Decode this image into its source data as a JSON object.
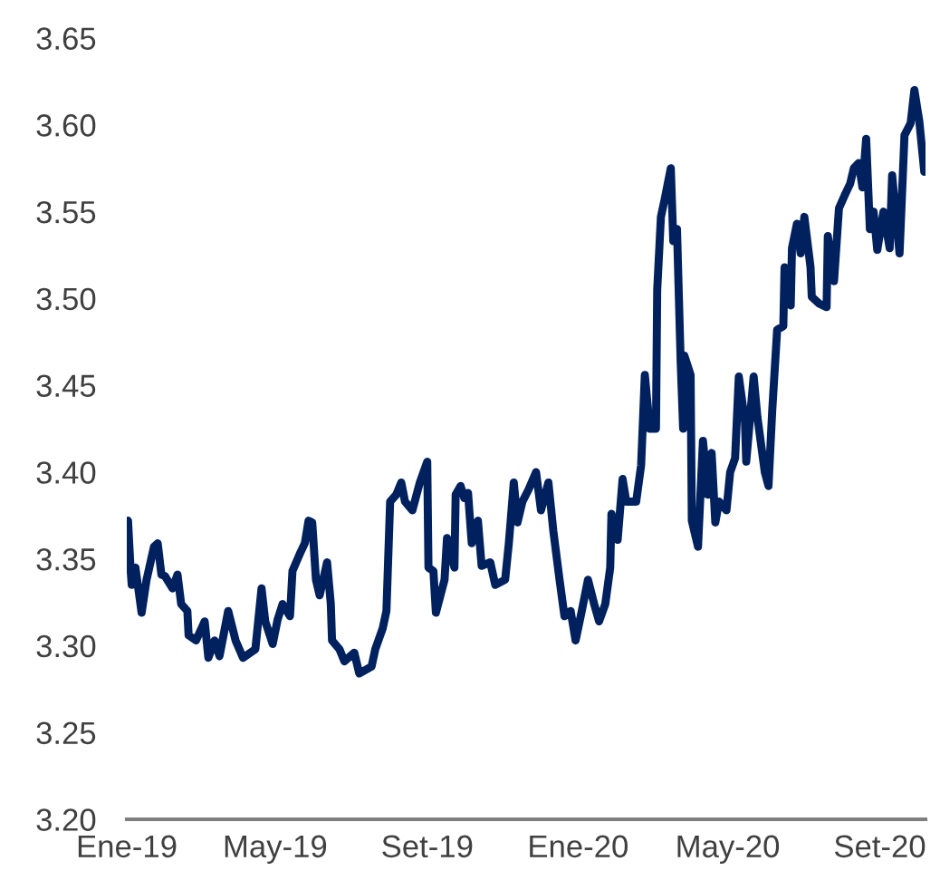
{
  "chart_data": {
    "type": "line",
    "x": [
      "2019-01-02",
      "2019-01-04",
      "2019-01-05",
      "2019-01-08",
      "2019-01-13",
      "2019-01-17",
      "2019-01-23",
      "2019-01-26",
      "2019-01-29",
      "2019-02-01",
      "2019-02-07",
      "2019-02-11",
      "2019-02-14",
      "2019-02-19",
      "2019-02-20",
      "2019-02-26",
      "2019-03-05",
      "2019-03-08",
      "2019-03-13",
      "2019-03-17",
      "2019-03-24",
      "2019-03-30",
      "2019-04-05",
      "2019-04-11",
      "2019-04-15",
      "2019-04-20",
      "2019-04-23",
      "2019-04-29",
      "2019-05-03",
      "2019-05-07",
      "2019-05-13",
      "2019-05-15",
      "2019-05-21",
      "2019-05-25",
      "2019-05-28",
      "2019-05-31",
      "2019-06-03",
      "2019-06-06",
      "2019-06-12",
      "2019-06-15",
      "2019-06-16",
      "2019-06-22",
      "2019-06-26",
      "2019-07-04",
      "2019-07-08",
      "2019-07-18",
      "2019-07-21",
      "2019-07-27",
      "2019-07-30",
      "2019-08-02",
      "2019-08-07",
      "2019-08-11",
      "2019-08-14",
      "2019-08-20",
      "2019-08-26",
      "2019-09-01",
      "2019-09-02",
      "2019-09-06",
      "2019-09-08",
      "2019-09-15",
      "2019-09-17",
      "2019-09-23",
      "2019-09-24",
      "2019-09-28",
      "2019-10-01",
      "2019-10-04",
      "2019-10-07",
      "2019-10-12",
      "2019-10-15",
      "2019-10-22",
      "2019-10-26",
      "2019-11-03",
      "2019-11-06",
      "2019-11-10",
      "2019-11-13",
      "2019-11-17",
      "2019-11-22",
      "2019-11-28",
      "2019-12-02",
      "2019-12-08",
      "2019-12-12",
      "2019-12-17",
      "2019-12-21",
      "2019-12-26",
      "2019-12-30",
      "2020-01-04",
      "2020-01-09",
      "2020-01-14",
      "2020-01-18",
      "2020-01-23",
      "2020-01-27",
      "2020-01-28",
      "2020-02-02",
      "2020-02-06",
      "2020-02-09",
      "2020-02-17",
      "2020-02-21",
      "2020-02-24",
      "2020-02-28",
      "2020-03-04",
      "2020-03-05",
      "2020-03-08",
      "2020-03-11",
      "2020-03-16",
      "2020-03-18",
      "2020-03-21",
      "2020-03-24",
      "2020-03-26",
      "2020-03-27",
      "2020-04-01",
      "2020-04-02",
      "2020-04-07",
      "2020-04-11",
      "2020-04-15",
      "2020-04-18",
      "2020-04-21",
      "2020-04-24",
      "2020-04-30",
      "2020-05-03",
      "2020-05-07",
      "2020-05-10",
      "2020-05-15",
      "2020-05-16",
      "2020-05-22",
      "2020-05-25",
      "2020-05-31",
      "2020-06-03",
      "2020-06-06",
      "2020-06-10",
      "2020-06-15",
      "2020-06-16",
      "2020-06-21",
      "2020-06-22",
      "2020-06-26",
      "2020-06-29",
      "2020-07-02",
      "2020-07-07",
      "2020-07-08",
      "2020-07-14",
      "2020-07-20",
      "2020-07-21",
      "2020-07-26",
      "2020-07-30",
      "2020-08-04",
      "2020-08-08",
      "2020-08-11",
      "2020-08-15",
      "2020-08-18",
      "2020-08-21",
      "2020-08-24",
      "2020-08-27",
      "2020-08-30",
      "2020-09-04",
      "2020-09-09",
      "2020-09-11",
      "2020-09-17",
      "2020-09-21",
      "2020-09-26",
      "2020-09-29",
      "2020-10-03",
      "2020-10-07"
    ],
    "series": [
      {
        "color": "#00215e",
        "values": [
          3.372,
          3.345,
          3.335,
          3.345,
          3.319,
          3.338,
          3.357,
          3.359,
          3.341,
          3.34,
          3.333,
          3.341,
          3.324,
          3.32,
          3.306,
          3.303,
          3.314,
          3.293,
          3.303,
          3.294,
          3.32,
          3.303,
          3.293,
          3.296,
          3.298,
          3.333,
          3.314,
          3.301,
          3.315,
          3.324,
          3.317,
          3.343,
          3.353,
          3.359,
          3.372,
          3.371,
          3.338,
          3.329,
          3.348,
          3.324,
          3.303,
          3.298,
          3.291,
          3.296,
          3.284,
          3.288,
          3.298,
          3.31,
          3.32,
          3.383,
          3.387,
          3.394,
          3.383,
          3.378,
          3.394,
          3.406,
          3.345,
          3.343,
          3.319,
          3.338,
          3.362,
          3.345,
          3.387,
          3.392,
          3.385,
          3.388,
          3.359,
          3.372,
          3.346,
          3.348,
          3.335,
          3.338,
          3.359,
          3.394,
          3.371,
          3.383,
          3.39,
          3.4,
          3.378,
          3.394,
          3.366,
          3.338,
          3.317,
          3.32,
          3.303,
          3.32,
          3.338,
          3.324,
          3.314,
          3.324,
          3.345,
          3.376,
          3.361,
          3.396,
          3.383,
          3.383,
          3.404,
          3.456,
          3.425,
          3.425,
          3.505,
          3.547,
          3.557,
          3.575,
          3.533,
          3.54,
          3.463,
          3.425,
          3.467,
          3.456,
          3.372,
          3.357,
          3.418,
          3.387,
          3.411,
          3.371,
          3.383,
          3.378,
          3.4,
          3.408,
          3.455,
          3.429,
          3.406,
          3.455,
          3.432,
          3.4,
          3.392,
          3.435,
          3.482,
          3.484,
          3.518,
          3.496,
          3.529,
          3.543,
          3.526,
          3.547,
          3.518,
          3.501,
          3.497,
          3.495,
          3.536,
          3.51,
          3.552,
          3.56,
          3.566,
          3.575,
          3.578,
          3.564,
          3.592,
          3.54,
          3.55,
          3.528,
          3.55,
          3.529,
          3.571,
          3.526,
          3.594,
          3.601,
          3.62,
          3.602,
          3.573
        ]
      }
    ],
    "xlim": [
      "2019-01-01",
      "2020-10-08"
    ],
    "xticks": [
      {
        "value": "2019-01-01",
        "label": "Ene-19"
      },
      {
        "value": "2019-05-01",
        "label": "May-19"
      },
      {
        "value": "2019-09-01",
        "label": "Set-19"
      },
      {
        "value": "2020-01-01",
        "label": "Ene-20"
      },
      {
        "value": "2020-05-01",
        "label": "May-20"
      },
      {
        "value": "2020-09-01",
        "label": "Set-20"
      }
    ],
    "ylim": [
      3.2,
      3.65
    ],
    "yticks": [
      {
        "value": 3.2,
        "label": "3.20"
      },
      {
        "value": 3.25,
        "label": "3.25"
      },
      {
        "value": 3.3,
        "label": "3.30"
      },
      {
        "value": 3.35,
        "label": "3.35"
      },
      {
        "value": 3.4,
        "label": "3.40"
      },
      {
        "value": 3.45,
        "label": "3.45"
      },
      {
        "value": 3.5,
        "label": "3.50"
      },
      {
        "value": 3.55,
        "label": "3.55"
      },
      {
        "value": 3.6,
        "label": "3.60"
      },
      {
        "value": 3.65,
        "label": "3.65"
      }
    ]
  }
}
